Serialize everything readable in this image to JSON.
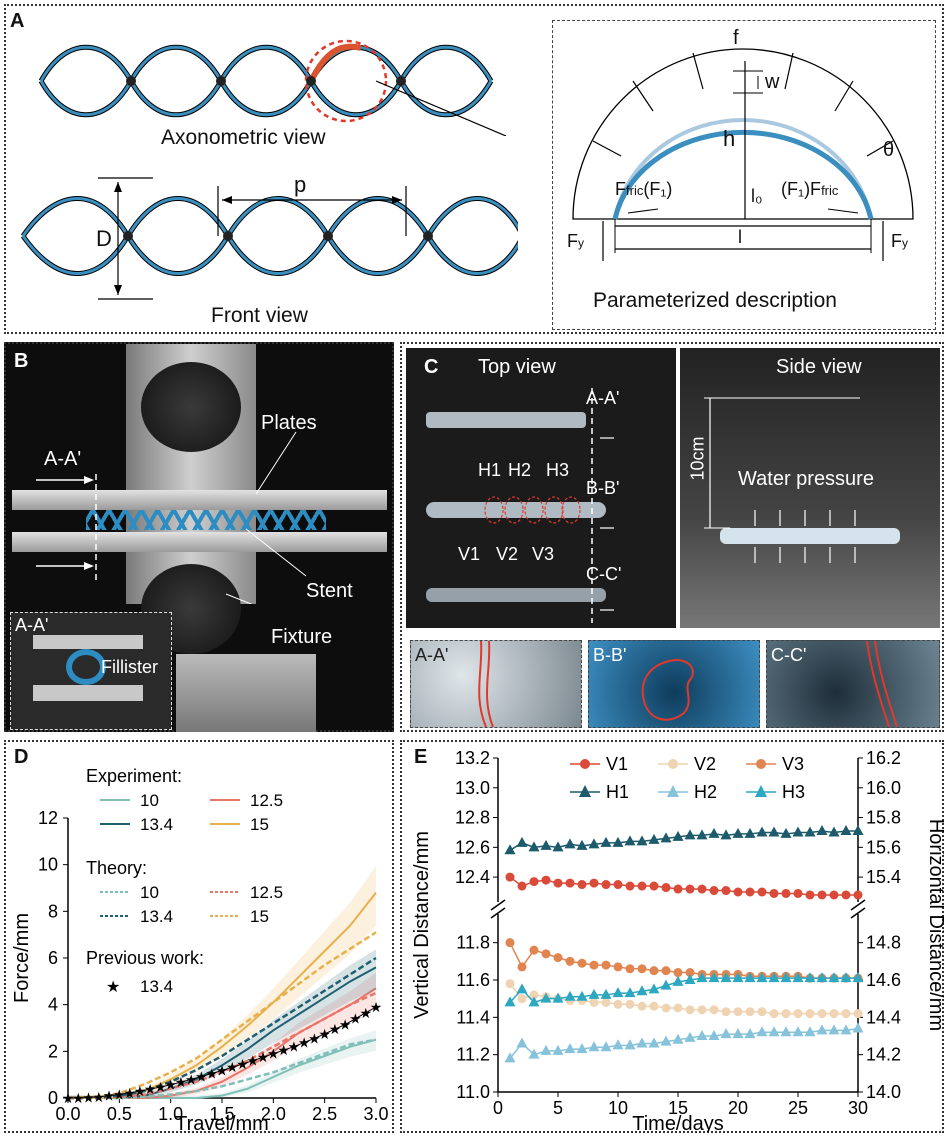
{
  "panel_a": {
    "label": "A",
    "axonometric_caption": "Axonometric view",
    "front_caption": "Front view",
    "param_caption": "Parameterized description",
    "sym_p": "p",
    "sym_D": "D",
    "sym_f": "f",
    "sym_w": "w",
    "sym_h": "h",
    "sym_theta": "θ",
    "sym_ffric_left": "F",
    "sym_ffric_left_sub": "fric",
    "sym_f1_left": "(F₁)",
    "sym_l0": "l₀",
    "sym_f1_right": "(F₁)F",
    "sym_ffric_right_sub": "fric",
    "sym_fy_left": "F",
    "sym_fy_left_sub": "y",
    "sym_l": "l",
    "sym_fy_right": "F",
    "sym_fy_right_sub": "y"
  },
  "panel_b": {
    "label": "B",
    "plates": "Plates",
    "aa": "A-A'",
    "stent": "Stent",
    "fixture": "Fixture",
    "inset_aa": "A-A'",
    "fillister": "Fillister"
  },
  "panel_c": {
    "label": "C",
    "top_view": "Top view",
    "side_view": "Side view",
    "aa": "A-A'",
    "bb": "B-B'",
    "cc": "C-C'",
    "h1": "H1",
    "h2": "H2",
    "h3": "H3",
    "v1": "V1",
    "v2": "V2",
    "v3": "V3",
    "height": "10cm",
    "water": "Water pressure",
    "inset_aa": "A-A'",
    "inset_bb": "B-B'",
    "inset_cc": "C-C'"
  },
  "colors": {
    "s10": "#7fbfb8",
    "s12_5": "#e8756a",
    "s13_4": "#1f5f70",
    "s15": "#e8b04a",
    "v1": "#d94a38",
    "v2": "#efd3b2",
    "v3": "#e08450",
    "h1": "#1c5a6c",
    "h2": "#86c2da",
    "h3": "#2ea7c1"
  },
  "chart_data": [
    {
      "panel": "D",
      "type": "line",
      "xlabel": "Travel/mm",
      "ylabel": "Force/mm",
      "xlim": [
        0,
        3.0
      ],
      "ylim": [
        0,
        12
      ],
      "xticks": [
        "0.0",
        "0.5",
        "1.0",
        "1.5",
        "2.0",
        "2.5",
        "3.0"
      ],
      "yticks": [
        "0",
        "2",
        "4",
        "6",
        "8",
        "10",
        "12"
      ],
      "legend": {
        "experiment_title": "Experiment:",
        "theory_title": "Theory:",
        "previous_title": "Previous work:",
        "exp": [
          "10",
          "12.5",
          "13.4",
          "15"
        ],
        "theory": [
          "10",
          "12.5",
          "13.4",
          "15"
        ],
        "previous": "13.4"
      },
      "x": [
        0,
        0.25,
        0.5,
        0.75,
        1.0,
        1.25,
        1.5,
        1.75,
        2.0,
        2.25,
        2.5,
        2.75,
        3.0
      ],
      "experiment": [
        {
          "name": "10",
          "values": [
            0,
            0,
            0,
            0,
            0,
            0,
            0.1,
            0.4,
            0.9,
            1.4,
            1.8,
            2.2,
            2.5
          ]
        },
        {
          "name": "12.5",
          "values": [
            0,
            0,
            0,
            0,
            0.1,
            0.3,
            0.7,
            1.3,
            2.0,
            2.8,
            3.4,
            4.0,
            4.7
          ]
        },
        {
          "name": "13.4",
          "values": [
            0,
            0,
            0,
            0.1,
            0.4,
            0.8,
            1.4,
            2.1,
            2.9,
            3.6,
            4.3,
            5.0,
            5.6
          ]
        },
        {
          "name": "15",
          "values": [
            0,
            0,
            0,
            0.3,
            0.8,
            1.4,
            2.2,
            3.1,
            4.1,
            5.2,
            6.3,
            7.4,
            8.8
          ]
        }
      ],
      "theory": [
        {
          "name": "10",
          "values": [
            0,
            0,
            0,
            0.05,
            0.15,
            0.3,
            0.5,
            0.8,
            1.1,
            1.5,
            1.9,
            2.3,
            2.5
          ]
        },
        {
          "name": "12.5",
          "values": [
            0,
            0,
            0.05,
            0.15,
            0.4,
            0.7,
            1.1,
            1.6,
            2.2,
            2.8,
            3.4,
            4.0,
            4.5
          ]
        },
        {
          "name": "13.4",
          "values": [
            0,
            0,
            0.1,
            0.3,
            0.7,
            1.2,
            1.8,
            2.5,
            3.2,
            3.9,
            4.6,
            5.3,
            6.0
          ]
        },
        {
          "name": "15",
          "values": [
            0,
            0.05,
            0.2,
            0.6,
            1.1,
            1.7,
            2.5,
            3.3,
            4.1,
            4.9,
            5.7,
            6.4,
            7.1
          ]
        }
      ],
      "previous": {
        "name": "13.4",
        "x": [
          0,
          0.1,
          0.2,
          0.3,
          0.4,
          0.5,
          0.6,
          0.7,
          0.8,
          0.9,
          1.0,
          1.1,
          1.2,
          1.3,
          1.4,
          1.5,
          1.6,
          1.7,
          1.8,
          1.9,
          2.0,
          2.1,
          2.2,
          2.3,
          2.4,
          2.5,
          2.6,
          2.7,
          2.8,
          2.9,
          3.0
        ],
        "values": [
          0,
          0,
          0.02,
          0.05,
          0.1,
          0.15,
          0.22,
          0.3,
          0.38,
          0.47,
          0.57,
          0.68,
          0.8,
          0.92,
          1.05,
          1.18,
          1.32,
          1.46,
          1.6,
          1.75,
          1.9,
          2.05,
          2.2,
          2.38,
          2.55,
          2.75,
          2.95,
          3.15,
          3.4,
          3.65,
          3.9
        ]
      }
    },
    {
      "panel": "E",
      "type": "line",
      "xlabel": "Time/days",
      "ylabel": "Vertical Distance/mm",
      "y2label": "Horizontal Distance/mm",
      "xlim": [
        0,
        30
      ],
      "xticks": [
        "0",
        "5",
        "10",
        "15",
        "20",
        "25",
        "30"
      ],
      "yticks_upper": [
        "12.4",
        "12.6",
        "12.8",
        "13.0",
        "13.2"
      ],
      "yticks_lower": [
        "11.0",
        "11.2",
        "11.4",
        "11.6",
        "11.8"
      ],
      "y2ticks_upper": [
        "15.4",
        "15.6",
        "15.8",
        "16.0",
        "16.2"
      ],
      "y2ticks_lower": [
        "14.0",
        "14.2",
        "14.4",
        "14.6",
        "14.8"
      ],
      "legend": [
        "V1",
        "V2",
        "V3",
        "H1",
        "H2",
        "H3"
      ],
      "series": [
        {
          "name": "V1",
          "axis": "left",
          "values": [
            12.4,
            12.34,
            12.37,
            12.38,
            12.36,
            12.36,
            12.35,
            12.36,
            12.35,
            12.35,
            12.34,
            12.34,
            12.34,
            12.33,
            12.32,
            12.32,
            12.32,
            12.31,
            12.31,
            12.3,
            12.3,
            12.3,
            12.29,
            12.29,
            12.29,
            12.28,
            12.28,
            12.28,
            12.28,
            12.28
          ]
        },
        {
          "name": "V2",
          "axis": "left",
          "values": [
            11.58,
            11.5,
            11.52,
            11.51,
            11.5,
            11.49,
            11.49,
            11.48,
            11.48,
            11.47,
            11.47,
            11.46,
            11.46,
            11.45,
            11.45,
            11.44,
            11.44,
            11.44,
            11.43,
            11.43,
            11.43,
            11.43,
            11.42,
            11.42,
            11.42,
            11.42,
            11.42,
            11.42,
            11.42,
            11.42
          ]
        },
        {
          "name": "V3",
          "axis": "left",
          "values": [
            11.8,
            11.67,
            11.76,
            11.74,
            11.72,
            11.7,
            11.69,
            11.68,
            11.68,
            11.67,
            11.66,
            11.66,
            11.65,
            11.65,
            11.64,
            11.64,
            11.63,
            11.63,
            11.63,
            11.63,
            11.62,
            11.62,
            11.62,
            11.62,
            11.62,
            11.61,
            11.61,
            11.61,
            11.61,
            11.61
          ]
        },
        {
          "name": "H1",
          "axis": "right",
          "values": [
            15.58,
            15.63,
            15.6,
            15.61,
            15.6,
            15.62,
            15.61,
            15.62,
            15.63,
            15.63,
            15.64,
            15.64,
            15.65,
            15.66,
            15.67,
            15.68,
            15.68,
            15.69,
            15.68,
            15.69,
            15.69,
            15.7,
            15.7,
            15.69,
            15.7,
            15.7,
            15.71,
            15.7,
            15.71,
            15.71
          ]
        },
        {
          "name": "H2",
          "axis": "right",
          "values": [
            14.18,
            14.26,
            14.2,
            14.22,
            14.22,
            14.23,
            14.23,
            14.24,
            14.24,
            14.25,
            14.25,
            14.26,
            14.26,
            14.27,
            14.28,
            14.29,
            14.3,
            14.3,
            14.31,
            14.31,
            14.31,
            14.32,
            14.32,
            14.32,
            14.32,
            14.32,
            14.33,
            14.33,
            14.33,
            14.34
          ]
        },
        {
          "name": "H3",
          "axis": "right",
          "values": [
            14.48,
            14.55,
            14.48,
            14.5,
            14.5,
            14.51,
            14.51,
            14.52,
            14.52,
            14.53,
            14.53,
            14.54,
            14.55,
            14.57,
            14.59,
            14.6,
            14.61,
            14.61,
            14.61,
            14.61,
            14.61,
            14.61,
            14.61,
            14.61,
            14.61,
            14.61,
            14.61,
            14.61,
            14.61,
            14.61
          ]
        }
      ]
    }
  ]
}
